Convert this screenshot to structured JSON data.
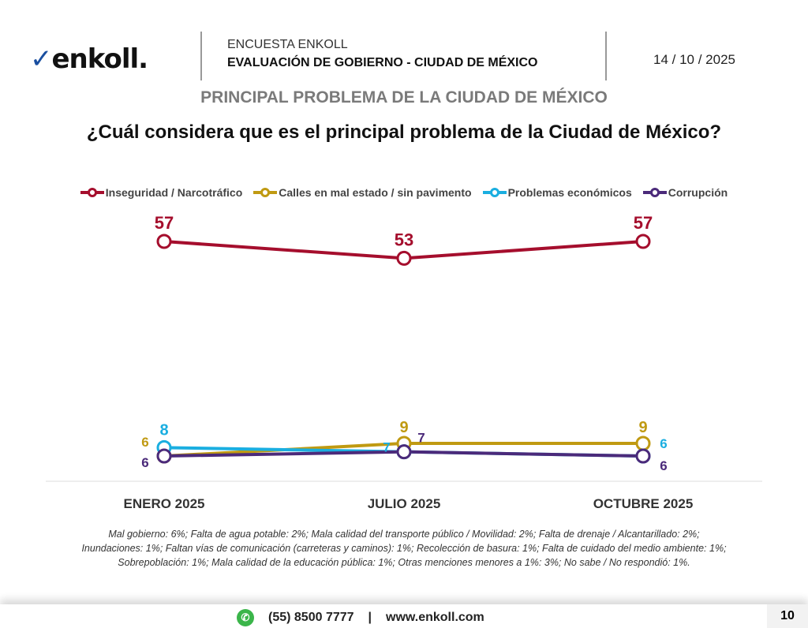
{
  "header": {
    "logo": "enkoll.",
    "survey": "ENCUESTA ENKOLL",
    "title": "EVALUACIÓN DE GOBIERNO - CIUDAD DE MÉXICO",
    "date": "14 / 10 / 2025"
  },
  "section_title": "PRINCIPAL PROBLEMA DE LA CIUDAD DE MÉXICO",
  "chart_data": {
    "type": "line",
    "title": "¿Cuál considera que es el principal problema de la Ciudad de México?",
    "categories": [
      "ENERO 2025",
      "JULIO 2025",
      "OCTUBRE 2025"
    ],
    "series": [
      {
        "name": "Inseguridad / Narcotráfico",
        "color": "#A50E2D",
        "values": [
          57,
          53,
          57
        ]
      },
      {
        "name": "Calles en mal estado / sin pavimento",
        "color": "#C09A12",
        "values": [
          6,
          9,
          9
        ]
      },
      {
        "name": "Problemas económicos",
        "color": "#1AAEE0",
        "values": [
          8,
          7,
          6
        ]
      },
      {
        "name": "Corrupción",
        "color": "#4B2A7A",
        "values": [
          6,
          7,
          6
        ]
      }
    ],
    "ylim": [
      0,
      60
    ],
    "legend": "top",
    "grid": false
  },
  "notes": [
    "Mal gobierno: 6%; Falta de agua potable: 2%; Mala calidad del transporte público / Movilidad: 2%; Falta de drenaje / Alcantarillado: 2%;",
    "Inundaciones: 1%; Faltan vías de comunicación (carreteras y caminos): 1%; Recolección de basura: 1%; Falta de cuidado del medio ambiente: 1%;",
    "Sobrepoblación: 1%; Mala calidad de la educación pública: 1%; Otras menciones menores a 1%: 3%; No sabe / No respondió: 1%."
  ],
  "footer": {
    "phone": "(55) 8500 7777",
    "sep": "|",
    "web": "www.enkoll.com",
    "page": "10"
  }
}
